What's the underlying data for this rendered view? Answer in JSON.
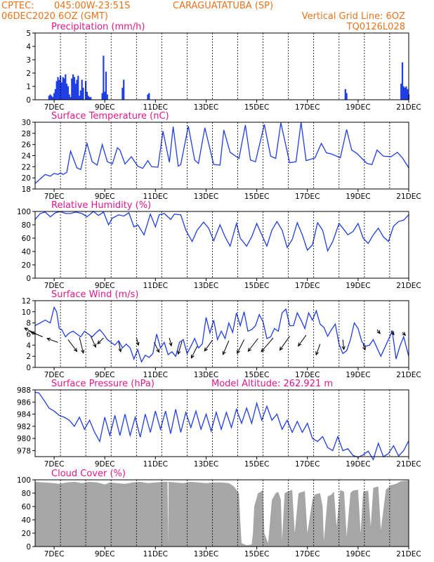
{
  "header": {
    "source": "CPTEC:",
    "coords": "045:00W-23:51S",
    "station": "CARAGUATATUBA (SP)",
    "run_time": "06DEC2020 6OZ (GMT)",
    "grid_note": "Vertical Grid Line: 6OZ",
    "model": "TQ0126L028"
  },
  "colors": {
    "header": "#e8731c",
    "title": "#e0188a",
    "line": "#1f3ee6",
    "bars": "#1f3ee6",
    "cloud": "#a6a6a6"
  },
  "x_axis": {
    "unit": "day of month (Dec 2020), 0.25 = 06Z",
    "range": [
      6.25,
      21.0
    ],
    "gridlines": [
      7.25,
      8.25,
      9.25,
      10.25,
      11.25,
      12.25,
      13.25,
      14.25,
      15.25,
      16.25,
      17.25,
      18.25,
      19.25,
      20.25
    ],
    "ticks": [
      {
        "x": 7.0,
        "label": "7DEC"
      },
      {
        "x": 9.0,
        "label": "9DEC"
      },
      {
        "x": 11.0,
        "label": "11DEC"
      },
      {
        "x": 13.0,
        "label": "13DEC"
      },
      {
        "x": 15.0,
        "label": "15DEC"
      },
      {
        "x": 17.0,
        "label": "17DEC"
      },
      {
        "x": 19.0,
        "label": "19DEC"
      },
      {
        "x": 21.0,
        "label": "21DEC"
      }
    ]
  },
  "chart_data": [
    {
      "type": "bar",
      "title": "Precipitation (mm/h)",
      "ylim": [
        0,
        5
      ],
      "yticks": [
        "0",
        "1",
        "2",
        "3",
        "4",
        "5"
      ],
      "x": [
        6.8,
        6.85,
        6.9,
        6.95,
        7.0,
        7.05,
        7.1,
        7.15,
        7.2,
        7.25,
        7.3,
        7.35,
        7.4,
        7.45,
        7.5,
        7.55,
        7.6,
        7.65,
        7.7,
        7.75,
        7.8,
        7.85,
        7.9,
        7.95,
        8.0,
        8.05,
        8.1,
        8.15,
        8.25,
        8.3,
        8.35,
        8.4,
        8.45,
        8.9,
        8.95,
        9.0,
        9.05,
        9.1,
        9.7,
        9.75,
        10.7,
        10.75,
        18.5,
        18.55,
        20.7,
        20.75,
        20.8,
        20.85,
        20.9,
        20.95,
        21.0
      ],
      "values": [
        0.3,
        0.4,
        0.3,
        0.2,
        0.5,
        0.8,
        1.4,
        1.7,
        1.5,
        1.8,
        1.3,
        1.7,
        1.6,
        1.9,
        1.2,
        1.0,
        0.4,
        0.2,
        1.6,
        1.9,
        1.7,
        1.2,
        1.5,
        1.8,
        0.3,
        0.7,
        1.5,
        0.9,
        1.4,
        0.6,
        0.3,
        0.2,
        0.2,
        0.5,
        3.3,
        0.6,
        2.1,
        0.4,
        0.9,
        1.5,
        0.4,
        0.5,
        0.8,
        0.5,
        1.2,
        2.8,
        1.0,
        0.9,
        1.0,
        0.8,
        0.4
      ]
    },
    {
      "type": "line",
      "title": "Surface Temperature (nC)",
      "ylim": [
        18,
        30
      ],
      "yticks": [
        "18",
        "20",
        "22",
        "24",
        "26",
        "28",
        "30"
      ],
      "x": [
        6.25,
        6.45,
        6.65,
        6.85,
        7.0,
        7.15,
        7.25,
        7.35,
        7.5,
        7.65,
        7.9,
        8.05,
        8.3,
        8.5,
        8.7,
        8.9,
        9.1,
        9.3,
        9.5,
        9.6,
        9.8,
        10.05,
        10.3,
        10.5,
        10.7,
        10.85,
        11.1,
        11.3,
        11.55,
        11.7,
        11.9,
        12.0,
        12.3,
        12.55,
        12.7,
        12.95,
        13.3,
        13.55,
        13.7,
        13.95,
        14.3,
        14.55,
        14.75,
        14.95,
        15.3,
        15.55,
        15.75,
        15.95,
        16.3,
        16.55,
        16.75,
        16.95,
        17.3,
        17.55,
        17.75,
        17.95,
        18.3,
        18.55,
        18.75,
        18.95,
        19.35,
        19.55,
        19.75,
        20.0,
        20.3,
        20.55,
        20.75,
        21.0
      ],
      "values": [
        19.0,
        19.8,
        20.6,
        20.3,
        20.8,
        20.6,
        20.9,
        20.6,
        21.0,
        24.8,
        21.8,
        21.5,
        26.2,
        22.9,
        22.3,
        26.0,
        22.9,
        22.5,
        25.4,
        25.0,
        22.5,
        23.8,
        22.1,
        21.7,
        23.1,
        22.0,
        21.9,
        28.4,
        22.8,
        29.2,
        22.1,
        22.4,
        29.3,
        23.2,
        22.6,
        29.0,
        22.4,
        22.3,
        28.6,
        24.6,
        23.5,
        29.5,
        23.2,
        22.9,
        29.6,
        23.9,
        23.5,
        29.9,
        22.7,
        22.9,
        30.0,
        23.1,
        23.6,
        26.2,
        24.5,
        24.3,
        23.6,
        28.7,
        25.0,
        24.4,
        22.6,
        22.4,
        25.0,
        23.9,
        23.8,
        24.6,
        23.6,
        21.8
      ]
    },
    {
      "type": "line",
      "title": "Relative Humidity (%)",
      "ylim": [
        0,
        100
      ],
      "yticks": [
        "0",
        "20",
        "40",
        "60",
        "80",
        "100"
      ],
      "x": [
        6.25,
        6.45,
        6.65,
        6.85,
        7.05,
        7.25,
        7.45,
        7.65,
        7.85,
        8.1,
        8.3,
        8.55,
        8.75,
        8.95,
        9.15,
        9.3,
        9.55,
        9.75,
        9.95,
        10.15,
        10.3,
        10.55,
        10.8,
        11.0,
        11.15,
        11.35,
        11.6,
        11.75,
        12.0,
        12.2,
        12.45,
        12.65,
        12.9,
        13.1,
        13.3,
        13.55,
        13.75,
        13.95,
        14.2,
        14.35,
        14.6,
        14.8,
        15.0,
        15.2,
        15.4,
        15.6,
        15.8,
        16.0,
        16.2,
        16.4,
        16.6,
        16.8,
        17.0,
        17.2,
        17.4,
        17.6,
        17.8,
        18.0,
        18.25,
        18.4,
        18.6,
        18.8,
        19.0,
        19.2,
        19.4,
        19.6,
        19.8,
        20.0,
        20.2,
        20.4,
        20.6,
        20.8,
        21.0
      ],
      "values": [
        88,
        97,
        99,
        92,
        98,
        100,
        97,
        97,
        99,
        97,
        92,
        100,
        94,
        99,
        80,
        90,
        95,
        93,
        98,
        77,
        80,
        65,
        96,
        77,
        95,
        97,
        88,
        96,
        95,
        72,
        55,
        72,
        84,
        75,
        56,
        80,
        62,
        48,
        82,
        60,
        48,
        62,
        82,
        65,
        48,
        72,
        85,
        72,
        46,
        58,
        83,
        65,
        42,
        50,
        83,
        72,
        41,
        55,
        82,
        75,
        65,
        70,
        82,
        60,
        52,
        65,
        75,
        62,
        55,
        78,
        85,
        87,
        95
      ]
    },
    {
      "type": "line",
      "title": "Surface Wind (m/s)",
      "ylim": [
        0,
        12
      ],
      "yticks": [
        "0",
        "2",
        "4",
        "6",
        "8",
        "10",
        "12"
      ],
      "x": [
        6.25,
        6.45,
        6.65,
        6.85,
        7.0,
        7.1,
        7.2,
        7.3,
        7.45,
        7.6,
        7.75,
        7.9,
        8.05,
        8.2,
        8.35,
        8.5,
        8.65,
        8.8,
        8.95,
        9.1,
        9.25,
        9.4,
        9.55,
        9.7,
        9.85,
        10.0,
        10.15,
        10.3,
        10.45,
        10.6,
        10.75,
        10.9,
        11.05,
        11.2,
        11.35,
        11.5,
        11.65,
        11.8,
        11.95,
        12.1,
        12.25,
        12.4,
        12.55,
        12.7,
        12.85,
        13.0,
        13.15,
        13.3,
        13.45,
        13.6,
        13.75,
        13.9,
        14.05,
        14.2,
        14.35,
        14.5,
        14.65,
        14.8,
        14.95,
        15.1,
        15.25,
        15.4,
        15.55,
        15.7,
        15.85,
        16.0,
        16.15,
        16.3,
        16.45,
        16.6,
        16.75,
        16.9,
        17.05,
        17.2,
        17.35,
        17.5,
        17.65,
        17.8,
        17.95,
        18.1,
        18.25,
        18.4,
        18.55,
        18.7,
        18.85,
        19.0,
        19.15,
        19.3,
        19.45,
        19.6,
        19.75,
        19.9,
        20.05,
        20.2,
        20.35,
        20.5,
        20.65,
        20.8,
        21.0
      ],
      "values": [
        7.5,
        8.0,
        8.5,
        8.0,
        10.8,
        10.0,
        7.0,
        6.8,
        5.5,
        6.2,
        6.5,
        6.0,
        5.5,
        6.5,
        6.0,
        5.5,
        6.2,
        6.8,
        6.0,
        5.0,
        4.5,
        4.0,
        4.8,
        3.5,
        4.2,
        3.5,
        1.5,
        3.2,
        1.0,
        2.2,
        1.8,
        2.5,
        6.0,
        3.5,
        4.5,
        2.3,
        2.8,
        2.0,
        4.5,
        5.0,
        2.5,
        3.8,
        5.2,
        3.5,
        4.2,
        9.0,
        6.2,
        8.5,
        5.0,
        6.5,
        5.2,
        8.0,
        6.3,
        9.8,
        7.5,
        10.0,
        6.5,
        6.8,
        7.5,
        9.5,
        8.2,
        5.2,
        5.5,
        7.0,
        6.5,
        9.8,
        10.5,
        7.5,
        7.5,
        9.8,
        8.5,
        7.0,
        9.8,
        8.5,
        10.2,
        7.8,
        7.2,
        5.6,
        6.8,
        7.8,
        4.2,
        2.5,
        3.0,
        5.0,
        8.0,
        7.0,
        4.6,
        3.8,
        4.0,
        5.0,
        3.5,
        2.0,
        3.5,
        5.0,
        6.5,
        1.5,
        3.8,
        5.5,
        2.0
      ],
      "arrows": [
        {
          "x": 6.3,
          "y": 6.0,
          "u": -1.2,
          "v": 0.6
        },
        {
          "x": 6.55,
          "y": 5.5,
          "u": -1.2,
          "v": 0.5
        },
        {
          "x": 7.15,
          "y": 4.5,
          "u": -1.1,
          "v": 0.4
        },
        {
          "x": 7.55,
          "y": 5.0,
          "u": 0.9,
          "v": -1.2
        },
        {
          "x": 8.0,
          "y": 5.4,
          "u": 0.4,
          "v": -1.6
        },
        {
          "x": 8.45,
          "y": 5.6,
          "u": 0.5,
          "v": -1.1
        },
        {
          "x": 8.95,
          "y": 5.3,
          "u": -0.6,
          "v": -0.6
        },
        {
          "x": 9.55,
          "y": 4.6,
          "u": 0.2,
          "v": -1.0
        },
        {
          "x": 10.25,
          "y": 5.4,
          "u": 0.2,
          "v": -0.8
        },
        {
          "x": 10.95,
          "y": 4.5,
          "u": 0.5,
          "v": -1.0
        },
        {
          "x": 11.55,
          "y": 5.3,
          "u": 0.2,
          "v": -0.8
        },
        {
          "x": 12.05,
          "y": 4.7,
          "u": -0.4,
          "v": -1.3
        },
        {
          "x": 12.65,
          "y": 3.8,
          "u": -0.6,
          "v": -1.2
        },
        {
          "x": 13.25,
          "y": 4.9,
          "u": -0.8,
          "v": -1.1
        },
        {
          "x": 13.9,
          "y": 4.8,
          "u": -0.6,
          "v": -1.4
        },
        {
          "x": 14.5,
          "y": 5.0,
          "u": -0.7,
          "v": -1.4
        },
        {
          "x": 15.05,
          "y": 5.2,
          "u": -1.0,
          "v": -1.3
        },
        {
          "x": 15.65,
          "y": 5.3,
          "u": -1.2,
          "v": -1.4
        },
        {
          "x": 16.3,
          "y": 5.6,
          "u": -1.0,
          "v": -1.4
        },
        {
          "x": 16.95,
          "y": 5.8,
          "u": -0.8,
          "v": -1.1
        },
        {
          "x": 17.5,
          "y": 4.2,
          "u": -0.4,
          "v": -1.1
        },
        {
          "x": 18.4,
          "y": 5.0,
          "u": 0.1,
          "v": -1.0
        },
        {
          "x": 19.2,
          "y": 4.2,
          "u": 0.2,
          "v": -0.6
        },
        {
          "x": 19.75,
          "y": 6.8,
          "u": 0.3,
          "v": -0.4
        },
        {
          "x": 20.3,
          "y": 6.6,
          "u": 0.3,
          "v": -0.4
        },
        {
          "x": 20.75,
          "y": 6.3,
          "u": 0.3,
          "v": -0.3
        }
      ]
    },
    {
      "type": "line",
      "title": "Surface Pressure (hPa)",
      "annotation": "Model Altitude: 262.921 m",
      "ylim": [
        977,
        988
      ],
      "yticks": [
        "978",
        "980",
        "982",
        "984",
        "986",
        "988"
      ],
      "x": [
        6.25,
        6.4,
        6.6,
        6.8,
        7.0,
        7.2,
        7.4,
        7.6,
        7.8,
        8.0,
        8.2,
        8.4,
        8.6,
        8.8,
        9.0,
        9.2,
        9.4,
        9.6,
        9.8,
        10.0,
        10.2,
        10.4,
        10.6,
        10.8,
        11.0,
        11.2,
        11.4,
        11.6,
        11.8,
        12.0,
        12.2,
        12.4,
        12.6,
        12.8,
        13.0,
        13.2,
        13.4,
        13.6,
        13.8,
        14.0,
        14.2,
        14.4,
        14.6,
        14.8,
        15.0,
        15.2,
        15.4,
        15.6,
        15.8,
        16.0,
        16.2,
        16.4,
        16.6,
        16.8,
        17.0,
        17.2,
        17.4,
        17.6,
        17.8,
        18.0,
        18.2,
        18.4,
        18.6,
        18.8,
        19.0,
        19.2,
        19.4,
        19.6,
        19.8,
        20.0,
        20.2,
        20.4,
        20.6,
        20.8,
        21.0
      ],
      "values": [
        987.6,
        987.5,
        986.3,
        985.0,
        984.5,
        983.8,
        983.5,
        983.0,
        982.0,
        983.5,
        981.5,
        983.0,
        981.0,
        979.5,
        983.5,
        980.5,
        983.8,
        980.5,
        984.0,
        980.5,
        983.5,
        980.2,
        984.0,
        981.0,
        984.5,
        981.5,
        984.5,
        980.8,
        984.8,
        981.0,
        984.3,
        981.8,
        984.5,
        981.5,
        984.0,
        981.2,
        984.3,
        981.5,
        984.3,
        981.8,
        984.8,
        982.5,
        985.0,
        982.5,
        985.8,
        983.0,
        985.3,
        983.0,
        984.0,
        981.5,
        983.0,
        981.0,
        982.8,
        981.0,
        982.5,
        980.0,
        979.5,
        980.3,
        978.5,
        978.0,
        980.3,
        978.0,
        978.3,
        977.2,
        976.9,
        977.3,
        977.9,
        976.5,
        979.2,
        977.0,
        977.5,
        978.8,
        977.1,
        978.0,
        979.6
      ]
    },
    {
      "type": "area",
      "title": "Cloud Cover (%)",
      "ylim": [
        0,
        100
      ],
      "yticks": [
        "0",
        "20",
        "40",
        "60",
        "80",
        "100"
      ],
      "x": [
        6.25,
        6.6,
        7.0,
        7.2,
        7.5,
        7.8,
        8.1,
        8.4,
        8.7,
        9.0,
        9.2,
        9.5,
        9.8,
        10.1,
        10.4,
        10.7,
        11.0,
        11.3,
        11.48,
        11.5,
        11.52,
        11.8,
        12.1,
        12.4,
        12.7,
        13.0,
        13.3,
        13.6,
        13.9,
        14.1,
        14.3,
        14.35,
        14.4,
        14.6,
        14.8,
        14.85,
        14.9,
        15.05,
        15.15,
        15.25,
        15.3,
        15.45,
        15.6,
        15.75,
        15.85,
        15.95,
        16.0,
        16.1,
        16.2,
        16.4,
        16.5,
        16.65,
        16.8,
        16.9,
        17.0,
        17.2,
        17.3,
        17.5,
        17.6,
        17.65,
        17.8,
        17.95,
        18.05,
        18.15,
        18.3,
        18.45,
        18.55,
        18.7,
        18.8,
        19.0,
        19.1,
        19.2,
        19.4,
        19.5,
        19.6,
        19.8,
        19.9,
        20.1,
        20.3,
        20.5,
        20.7,
        21.0
      ],
      "values": [
        97,
        96,
        95,
        94,
        96,
        97,
        95,
        97,
        96,
        93,
        96,
        95,
        94,
        96,
        97,
        95,
        96,
        97,
        97,
        2,
        97,
        96,
        95,
        97,
        96,
        95,
        96,
        96,
        95,
        90,
        80,
        40,
        5,
        2,
        3,
        20,
        60,
        80,
        82,
        85,
        20,
        5,
        70,
        80,
        82,
        70,
        10,
        80,
        82,
        85,
        20,
        80,
        82,
        83,
        20,
        70,
        78,
        80,
        60,
        8,
        75,
        78,
        82,
        30,
        85,
        82,
        15,
        80,
        84,
        85,
        20,
        82,
        84,
        30,
        88,
        90,
        25,
        85,
        92,
        94,
        98,
        99
      ]
    }
  ]
}
